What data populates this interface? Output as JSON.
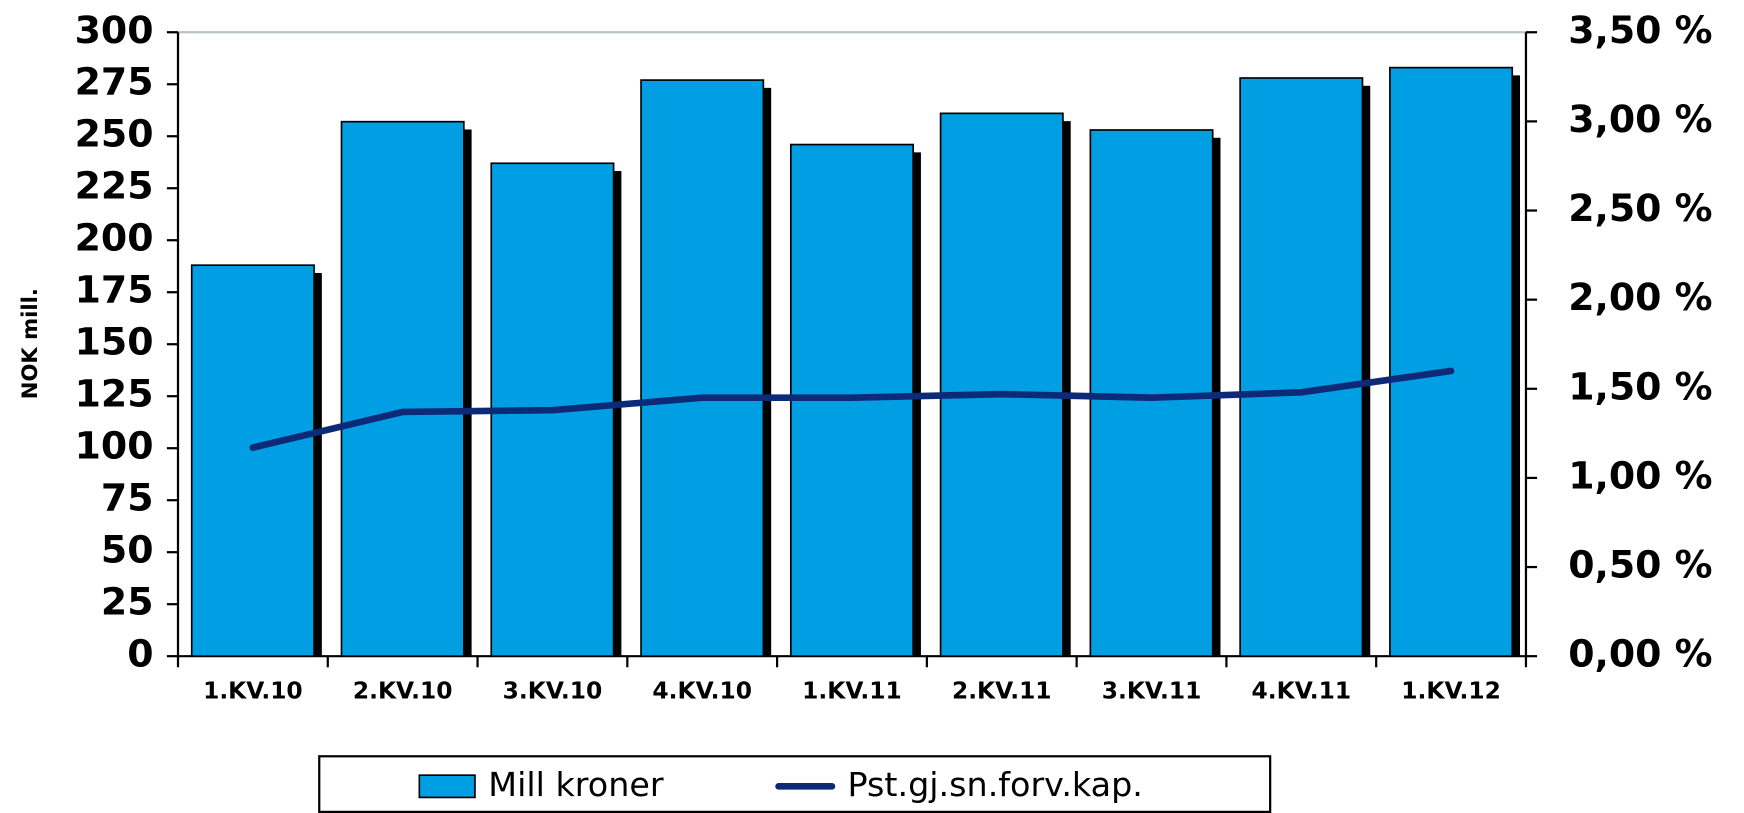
{
  "chart_data": {
    "type": "bar_line",
    "y_label": "NOK mill.",
    "categories": [
      "1.KV.10",
      "2.KV.10",
      "3.KV.10",
      "4.KV.10",
      "1.KV.11",
      "2.KV.11",
      "3.KV.11",
      "4.KV.11",
      "1.KV.12"
    ],
    "series": [
      {
        "name": "Mill kroner",
        "color": "#009fe3",
        "type": "bar",
        "values": [
          188,
          257,
          237,
          277,
          246,
          261,
          253,
          278,
          283
        ]
      },
      {
        "name": "Pst.gj.sn.forv.kap.",
        "color": "#0c2a78",
        "type": "line",
        "axis": "y2",
        "values": [
          1.17,
          1.37,
          1.38,
          1.45,
          1.45,
          1.47,
          1.45,
          1.48,
          1.6
        ]
      }
    ],
    "ylim": [
      0,
      300
    ],
    "yticks": [
      0,
      25,
      50,
      75,
      100,
      125,
      150,
      175,
      200,
      225,
      250,
      275,
      300
    ],
    "y2lim": [
      0,
      3.5
    ],
    "y2ticks": [
      {
        "value": 0,
        "label": "0,00 %"
      },
      {
        "value": 0.5,
        "label": "0,50 %"
      },
      {
        "value": 1,
        "label": "1,00 %"
      },
      {
        "value": 1.5,
        "label": "1,50 %"
      },
      {
        "value": 2,
        "label": "2,00 %"
      },
      {
        "value": 2.5,
        "label": "2,50 %"
      },
      {
        "value": 3,
        "label": "3,00 %"
      },
      {
        "value": 3.5,
        "label": "3,50 %"
      }
    ],
    "legend": "bottom"
  }
}
